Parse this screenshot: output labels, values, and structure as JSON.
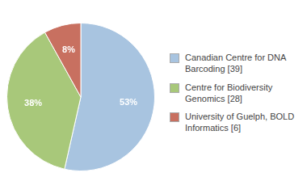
{
  "chart_data": {
    "type": "pie",
    "categories": [
      "Canadian Centre for DNA\nBarcoding [39]",
      "Centre for Biodiversity\nGenomics [28]",
      "University of Guelph, BOLD\nInformatics [6]"
    ],
    "values": [
      53,
      38,
      8
    ],
    "value_labels": [
      "53%",
      "38%",
      "8%"
    ],
    "colors": [
      "#a8c4e0",
      "#a8c87a",
      "#c87060"
    ],
    "data_labels": true,
    "legend": "right"
  }
}
